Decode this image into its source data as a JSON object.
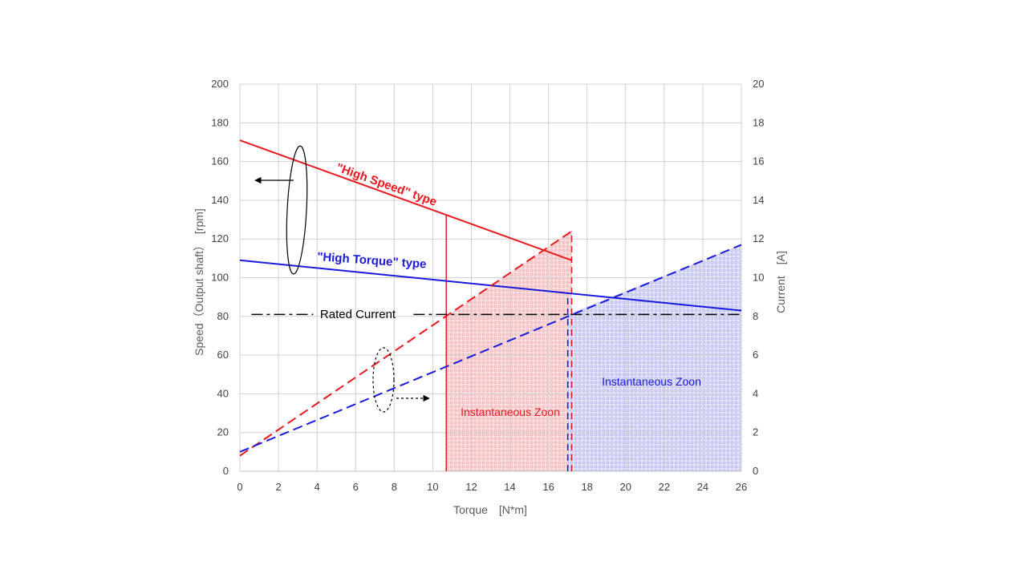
{
  "chart_data": {
    "type": "line",
    "xlabel": "Torque　[N*m]",
    "ylabel": "Speed（Output shaft）　[rpm]",
    "y2label": "Current　[A]",
    "xlim": [
      0,
      26
    ],
    "ylim": [
      0,
      200
    ],
    "y2lim": [
      0,
      20
    ],
    "x_ticks": [
      0,
      2,
      4,
      6,
      8,
      10,
      12,
      14,
      16,
      18,
      20,
      22,
      24,
      26
    ],
    "y_ticks": [
      0,
      20,
      40,
      60,
      80,
      100,
      120,
      140,
      160,
      180,
      200
    ],
    "y2_ticks": [
      0,
      2,
      4,
      6,
      8,
      10,
      12,
      14,
      16,
      18,
      20
    ],
    "grid": true,
    "series": [
      {
        "name": "\"High Speed\" type",
        "axis": "speed",
        "style": "solid",
        "color": "#e8191f",
        "points": [
          [
            0,
            171
          ],
          [
            17.2,
            109
          ]
        ]
      },
      {
        "name": "\"High Torque\" type",
        "axis": "speed",
        "style": "solid",
        "color": "#1a1adc",
        "points": [
          [
            0,
            109
          ],
          [
            26,
            83
          ]
        ]
      },
      {
        "name": "",
        "axis": "current",
        "style": "dashed",
        "color": "#e8191f",
        "points": [
          [
            0,
            0.8
          ],
          [
            17.2,
            12.4
          ]
        ]
      },
      {
        "name": "",
        "axis": "current",
        "style": "dashed",
        "color": "#1a1adc",
        "points": [
          [
            0,
            1.0
          ],
          [
            26,
            11.7
          ]
        ]
      }
    ],
    "rated_current": {
      "label": "Rated Current",
      "value": 8.1,
      "color": "#000000"
    },
    "zones": [
      {
        "label": "Instantaneous Zoon",
        "series": "\"High Speed\" type",
        "x_from": 10.7,
        "x_to": 17.2,
        "color": "#e8191f"
      },
      {
        "label": "Instantaneous Zoon",
        "series": "\"High Torque\" type",
        "x_from": 17.0,
        "x_to": 26,
        "color": "#1a1adc"
      }
    ]
  }
}
